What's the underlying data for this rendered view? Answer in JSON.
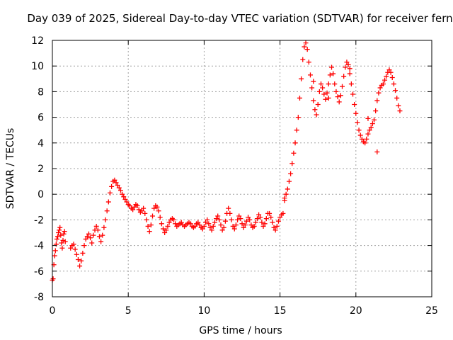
{
  "chart_data": {
    "type": "scatter",
    "title": "Day 039 of 2025, Sidereal Day-to-day VTEC variation (SDTVAR) for receiver fern",
    "xlabel": "GPS time / hours",
    "ylabel": "SDTVAR / TECUs",
    "xlim": [
      0,
      25
    ],
    "ylim": [
      -8,
      12
    ],
    "xticks": [
      0,
      5,
      10,
      15,
      20,
      25
    ],
    "yticks": [
      -8,
      -6,
      -4,
      -2,
      0,
      2,
      4,
      6,
      8,
      10,
      12
    ],
    "grid": true,
    "marker": "+",
    "series": [
      {
        "name": "SDTVAR",
        "color": "#ff0000",
        "points": [
          [
            0.0,
            -6.7
          ],
          [
            0.05,
            -6.6
          ],
          [
            0.1,
            -5.5
          ],
          [
            0.15,
            -4.8
          ],
          [
            0.2,
            -4.4
          ],
          [
            0.25,
            -3.9
          ],
          [
            0.3,
            -3.5
          ],
          [
            0.35,
            -3.3
          ],
          [
            0.4,
            -3.0
          ],
          [
            0.45,
            -2.8
          ],
          [
            0.5,
            -2.6
          ],
          [
            0.55,
            -3.2
          ],
          [
            0.6,
            -3.8
          ],
          [
            0.65,
            -4.2
          ],
          [
            0.7,
            -3.6
          ],
          [
            0.75,
            -3.1
          ],
          [
            0.8,
            -2.9
          ],
          [
            0.85,
            -3.7
          ],
          [
            1.2,
            -4.2
          ],
          [
            1.3,
            -4.0
          ],
          [
            1.4,
            -3.9
          ],
          [
            1.5,
            -4.3
          ],
          [
            1.6,
            -4.7
          ],
          [
            1.7,
            -5.1
          ],
          [
            1.8,
            -5.6
          ],
          [
            1.9,
            -5.2
          ],
          [
            2.0,
            -4.6
          ],
          [
            2.1,
            -4.0
          ],
          [
            2.2,
            -3.5
          ],
          [
            2.3,
            -3.3
          ],
          [
            2.4,
            -3.1
          ],
          [
            2.5,
            -3.4
          ],
          [
            2.6,
            -3.8
          ],
          [
            2.7,
            -3.2
          ],
          [
            2.8,
            -2.8
          ],
          [
            2.9,
            -2.5
          ],
          [
            3.0,
            -2.8
          ],
          [
            3.1,
            -3.3
          ],
          [
            3.2,
            -3.7
          ],
          [
            3.3,
            -3.2
          ],
          [
            3.4,
            -2.6
          ],
          [
            3.5,
            -2.0
          ],
          [
            3.6,
            -1.3
          ],
          [
            3.7,
            -0.6
          ],
          [
            3.8,
            0.1
          ],
          [
            3.9,
            0.6
          ],
          [
            4.0,
            1.0
          ],
          [
            4.1,
            1.1
          ],
          [
            4.2,
            0.9
          ],
          [
            4.3,
            0.7
          ],
          [
            4.4,
            0.5
          ],
          [
            4.5,
            0.3
          ],
          [
            4.6,
            0.0
          ],
          [
            4.7,
            -0.2
          ],
          [
            4.8,
            -0.4
          ],
          [
            4.9,
            -0.6
          ],
          [
            5.0,
            -0.8
          ],
          [
            5.1,
            -0.9
          ],
          [
            5.2,
            -1.1
          ],
          [
            5.3,
            -1.2
          ],
          [
            5.4,
            -1.0
          ],
          [
            5.5,
            -0.8
          ],
          [
            5.6,
            -0.9
          ],
          [
            5.7,
            -1.2
          ],
          [
            5.8,
            -1.4
          ],
          [
            5.9,
            -1.3
          ],
          [
            6.0,
            -1.1
          ],
          [
            6.1,
            -1.5
          ],
          [
            6.2,
            -2.0
          ],
          [
            6.3,
            -2.5
          ],
          [
            6.4,
            -2.9
          ],
          [
            6.5,
            -2.4
          ],
          [
            6.6,
            -1.7
          ],
          [
            6.7,
            -1.1
          ],
          [
            6.8,
            -0.9
          ],
          [
            6.9,
            -1.0
          ],
          [
            7.0,
            -1.3
          ],
          [
            7.1,
            -1.8
          ],
          [
            7.2,
            -2.3
          ],
          [
            7.3,
            -2.7
          ],
          [
            7.4,
            -3.0
          ],
          [
            7.5,
            -2.8
          ],
          [
            7.6,
            -2.5
          ],
          [
            7.7,
            -2.2
          ],
          [
            7.8,
            -2.0
          ],
          [
            7.9,
            -1.9
          ],
          [
            8.0,
            -2.0
          ],
          [
            8.1,
            -2.3
          ],
          [
            8.2,
            -2.5
          ],
          [
            8.3,
            -2.4
          ],
          [
            8.4,
            -2.3
          ],
          [
            8.5,
            -2.2
          ],
          [
            8.6,
            -2.4
          ],
          [
            8.7,
            -2.5
          ],
          [
            8.8,
            -2.4
          ],
          [
            8.9,
            -2.3
          ],
          [
            9.0,
            -2.2
          ],
          [
            9.1,
            -2.3
          ],
          [
            9.2,
            -2.5
          ],
          [
            9.3,
            -2.6
          ],
          [
            9.4,
            -2.5
          ],
          [
            9.5,
            -2.3
          ],
          [
            9.6,
            -2.2
          ],
          [
            9.7,
            -2.4
          ],
          [
            9.8,
            -2.6
          ],
          [
            9.9,
            -2.7
          ],
          [
            10.0,
            -2.5
          ],
          [
            10.1,
            -2.2
          ],
          [
            10.2,
            -2.0
          ],
          [
            10.3,
            -2.3
          ],
          [
            10.4,
            -2.6
          ],
          [
            10.5,
            -2.8
          ],
          [
            10.6,
            -2.5
          ],
          [
            10.7,
            -2.2
          ],
          [
            10.8,
            -1.9
          ],
          [
            10.9,
            -1.7
          ],
          [
            11.0,
            -2.0
          ],
          [
            11.1,
            -2.4
          ],
          [
            11.2,
            -2.8
          ],
          [
            11.3,
            -2.6
          ],
          [
            11.4,
            -2.1
          ],
          [
            11.5,
            -1.5
          ],
          [
            11.6,
            -1.1
          ],
          [
            11.7,
            -1.5
          ],
          [
            11.8,
            -2.0
          ],
          [
            11.9,
            -2.5
          ],
          [
            12.0,
            -2.7
          ],
          [
            12.1,
            -2.4
          ],
          [
            12.2,
            -2.0
          ],
          [
            12.3,
            -1.7
          ],
          [
            12.4,
            -1.9
          ],
          [
            12.5,
            -2.3
          ],
          [
            12.6,
            -2.6
          ],
          [
            12.7,
            -2.4
          ],
          [
            12.8,
            -2.1
          ],
          [
            12.9,
            -1.8
          ],
          [
            13.0,
            -2.0
          ],
          [
            13.1,
            -2.4
          ],
          [
            13.2,
            -2.6
          ],
          [
            13.3,
            -2.5
          ],
          [
            13.4,
            -2.2
          ],
          [
            13.5,
            -1.9
          ],
          [
            13.6,
            -1.6
          ],
          [
            13.7,
            -1.8
          ],
          [
            13.8,
            -2.2
          ],
          [
            13.9,
            -2.5
          ],
          [
            14.0,
            -2.3
          ],
          [
            14.1,
            -1.9
          ],
          [
            14.2,
            -1.5
          ],
          [
            14.3,
            -1.5
          ],
          [
            14.4,
            -1.8
          ],
          [
            14.5,
            -2.2
          ],
          [
            14.6,
            -2.6
          ],
          [
            14.7,
            -2.8
          ],
          [
            14.8,
            -2.5
          ],
          [
            14.9,
            -2.1
          ],
          [
            15.0,
            -1.8
          ],
          [
            15.1,
            -1.6
          ],
          [
            15.2,
            -1.5
          ],
          [
            15.3,
            -0.5
          ],
          [
            15.4,
            0.0
          ],
          [
            15.5,
            0.4
          ],
          [
            15.6,
            1.0
          ],
          [
            15.7,
            1.6
          ],
          [
            15.8,
            2.4
          ],
          [
            15.9,
            3.2
          ],
          [
            16.0,
            4.0
          ],
          [
            16.1,
            5.0
          ],
          [
            16.2,
            6.0
          ],
          [
            16.3,
            7.5
          ],
          [
            16.4,
            9.0
          ],
          [
            16.5,
            10.5
          ],
          [
            16.6,
            11.5
          ],
          [
            16.7,
            11.8
          ],
          [
            16.8,
            11.3
          ],
          [
            16.9,
            10.3
          ],
          [
            17.0,
            9.3
          ],
          [
            17.1,
            8.3
          ],
          [
            17.2,
            7.3
          ],
          [
            17.3,
            6.6
          ],
          [
            17.4,
            6.2
          ],
          [
            17.5,
            7.0
          ],
          [
            17.6,
            8.0
          ],
          [
            17.7,
            8.6
          ],
          [
            17.8,
            8.3
          ],
          [
            17.9,
            7.8
          ],
          [
            18.0,
            7.4
          ],
          [
            18.1,
            7.9
          ],
          [
            18.2,
            8.6
          ],
          [
            18.3,
            9.3
          ],
          [
            18.4,
            9.9
          ],
          [
            18.5,
            9.4
          ],
          [
            18.6,
            8.6
          ],
          [
            18.7,
            8.0
          ],
          [
            18.8,
            7.6
          ],
          [
            18.9,
            7.2
          ],
          [
            19.0,
            7.7
          ],
          [
            19.1,
            8.4
          ],
          [
            19.2,
            9.2
          ],
          [
            19.3,
            9.9
          ],
          [
            19.4,
            10.3
          ],
          [
            19.5,
            10.1
          ],
          [
            19.6,
            9.4
          ],
          [
            19.7,
            8.6
          ],
          [
            19.8,
            7.8
          ],
          [
            19.9,
            7.0
          ],
          [
            20.0,
            6.3
          ],
          [
            20.1,
            5.6
          ],
          [
            20.2,
            5.0
          ],
          [
            20.3,
            4.6
          ],
          [
            20.4,
            4.3
          ],
          [
            20.5,
            4.1
          ],
          [
            20.6,
            4.0
          ],
          [
            20.7,
            4.3
          ],
          [
            20.8,
            4.7
          ],
          [
            20.9,
            5.0
          ],
          [
            21.0,
            5.2
          ],
          [
            21.1,
            5.5
          ],
          [
            21.2,
            5.8
          ],
          [
            21.3,
            6.5
          ],
          [
            21.4,
            7.3
          ],
          [
            21.5,
            7.9
          ],
          [
            21.6,
            8.3
          ],
          [
            21.7,
            8.5
          ],
          [
            21.8,
            8.6
          ],
          [
            21.9,
            8.9
          ],
          [
            22.0,
            9.2
          ],
          [
            22.1,
            9.5
          ],
          [
            22.2,
            9.7
          ],
          [
            22.3,
            9.5
          ],
          [
            22.4,
            9.1
          ],
          [
            22.5,
            8.6
          ],
          [
            22.6,
            8.1
          ],
          [
            22.7,
            7.5
          ],
          [
            22.8,
            6.9
          ],
          [
            22.9,
            6.5
          ],
          [
            21.4,
            3.3
          ],
          [
            15.3,
            -0.3
          ],
          [
            19.6,
            9.8
          ],
          [
            18.2,
            7.5
          ],
          [
            17.2,
            8.8
          ],
          [
            20.8,
            5.9
          ]
        ]
      }
    ]
  }
}
